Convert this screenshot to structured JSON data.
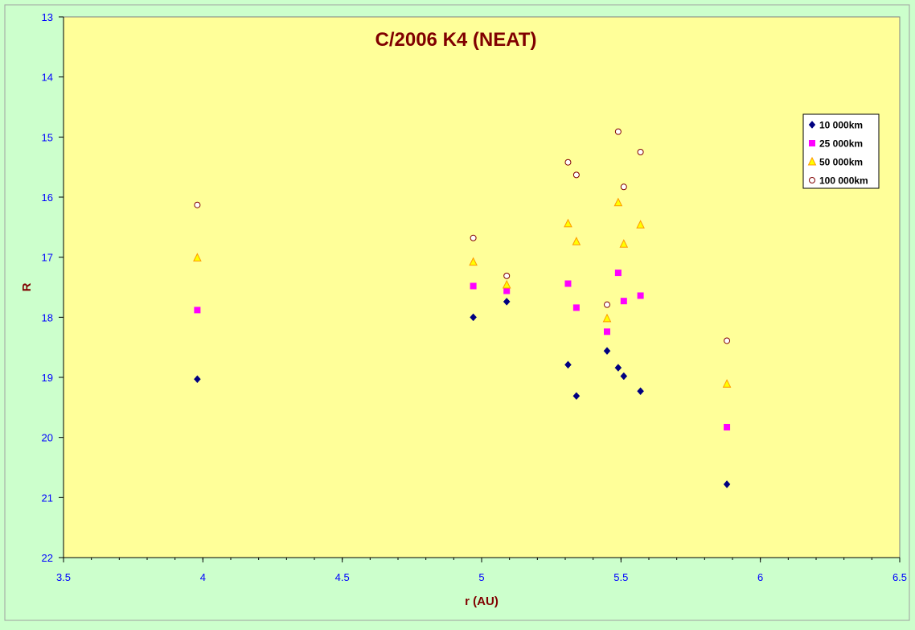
{
  "chart_data": {
    "type": "scatter",
    "title": "C/2006 K4 (NEAT)",
    "xlabel": "r (AU)",
    "ylabel": "R",
    "xlim": [
      3.5,
      6.5
    ],
    "ylim": [
      13,
      22
    ],
    "y_inverted": true,
    "x_ticks": [
      "3.5",
      "4",
      "4.5",
      "5",
      "5.5",
      "6",
      "6.5"
    ],
    "y_ticks": [
      "13",
      "14",
      "15",
      "16",
      "17",
      "18",
      "19",
      "20",
      "21",
      "22"
    ],
    "grid": false,
    "legend_position": "top-right",
    "colors": {
      "outer_background": "#ccffcc",
      "plot_background": "#ffff99",
      "title": "#800000",
      "axis_label": "#800000",
      "tick_label": "#0000ff"
    },
    "series": [
      {
        "name": "10 000km",
        "marker": "diamond",
        "color": "#000080",
        "points": [
          [
            3.98,
            19.03
          ],
          [
            4.97,
            18.0
          ],
          [
            5.09,
            17.74
          ],
          [
            5.31,
            18.79
          ],
          [
            5.34,
            19.31
          ],
          [
            5.45,
            18.56
          ],
          [
            5.49,
            18.84
          ],
          [
            5.51,
            18.98
          ],
          [
            5.57,
            19.23
          ],
          [
            5.88,
            20.78
          ]
        ]
      },
      {
        "name": "25 000km",
        "marker": "square",
        "color": "#ff00ff",
        "points": [
          [
            3.98,
            17.88
          ],
          [
            4.97,
            17.48
          ],
          [
            5.09,
            17.56
          ],
          [
            5.31,
            17.44
          ],
          [
            5.34,
            17.84
          ],
          [
            5.45,
            18.24
          ],
          [
            5.49,
            17.26
          ],
          [
            5.51,
            17.73
          ],
          [
            5.57,
            17.64
          ],
          [
            5.88,
            19.83
          ]
        ]
      },
      {
        "name": "50 000km",
        "marker": "triangle",
        "color": "#ff9900",
        "points": [
          [
            3.98,
            17.01
          ],
          [
            4.97,
            17.08
          ],
          [
            5.09,
            17.46
          ],
          [
            5.31,
            16.44
          ],
          [
            5.34,
            16.74
          ],
          [
            5.45,
            18.02
          ],
          [
            5.49,
            16.09
          ],
          [
            5.51,
            16.78
          ],
          [
            5.57,
            16.46
          ],
          [
            5.88,
            19.11
          ]
        ]
      },
      {
        "name": "100 000km",
        "marker": "circle",
        "color": "#800000",
        "points": [
          [
            3.98,
            16.13
          ],
          [
            4.97,
            16.68
          ],
          [
            5.09,
            17.31
          ],
          [
            5.31,
            15.42
          ],
          [
            5.34,
            15.63
          ],
          [
            5.45,
            17.79
          ],
          [
            5.49,
            14.91
          ],
          [
            5.51,
            15.83
          ],
          [
            5.57,
            15.25
          ],
          [
            5.88,
            18.39
          ]
        ]
      }
    ]
  }
}
